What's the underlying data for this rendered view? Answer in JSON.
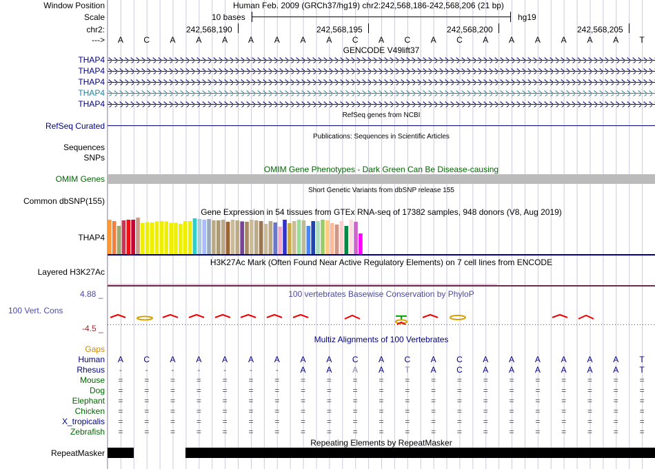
{
  "colors": {
    "navy": "#000080",
    "green": "#006600",
    "teal": "#1f7f99",
    "gaps_orange": "#cc8800",
    "phylo_blue": "#4a4aa3",
    "phylo_neg": "#9a2a2a",
    "omim_gray": "#bbbbbb",
    "h3k27ac_line": "#6a2a4a",
    "guide_line": "#d0c8dc"
  },
  "header": {
    "window_position_label": "Window Position",
    "window_position_value": "Human Feb. 2009 (GRCh37/hg19)   chr2:242,568,186-242,568,206 (21 bp)",
    "scale_label": "Scale",
    "scale_value": "10 bases",
    "scale_assembly": "hg19",
    "chrom_label": "chr2:",
    "coords": [
      "242,568,190",
      "242,568,195",
      "242,568,200",
      "242,568,205"
    ],
    "strand_label": "--->"
  },
  "sequence": [
    "A",
    "C",
    "A",
    "A",
    "A",
    "A",
    "A",
    "A",
    "A",
    "C",
    "A",
    "C",
    "A",
    "C",
    "A",
    "A",
    "A",
    "A",
    "A",
    "A",
    "T"
  ],
  "tracks": {
    "gencode": {
      "title": "GENCODE V49lift37",
      "transcripts": [
        "THAP4",
        "THAP4",
        "THAP4",
        "THAP4",
        "THAP4"
      ]
    },
    "refseq": {
      "title": "RefSeq genes from NCBI",
      "label": "RefSeq Curated"
    },
    "publications": {
      "title": "Publications: Sequences in Scientific Articles",
      "label_sequences": "Sequences",
      "label_snps": "SNPs"
    },
    "omim": {
      "title": "OMIM Gene Phenotypes - Dark Green Can Be Disease-causing",
      "label": "OMIM Genes"
    },
    "dbsnp": {
      "title": "Short Genetic Variants from dbSNP release 155",
      "label": "Common dbSNP(155)"
    },
    "gtex": {
      "title": "Gene Expression in 54 tissues from GTEx RNA-seq of 17382 samples, 948 donors (V8, Aug 2019)",
      "label": "THAP4",
      "values": [
        100,
        96,
        82,
        98,
        100,
        100,
        106,
        91,
        93,
        92,
        95,
        96,
        95,
        91,
        91,
        88,
        96,
        96,
        104,
        102,
        100,
        102,
        98,
        98,
        100,
        94,
        100,
        98,
        95,
        94,
        100,
        98,
        96,
        88,
        96,
        92,
        80,
        100,
        90,
        96,
        100,
        98,
        82,
        96,
        96,
        100,
        98,
        90,
        86,
        96,
        82,
        100,
        94,
        60
      ],
      "colors": [
        "#ff9933",
        "#f08040",
        "#99aa77",
        "#cc3355",
        "#ee1111",
        "#cc0033",
        "#cc9988",
        "#eeee00",
        "#eeee00",
        "#eeee00",
        "#eeee00",
        "#eeee00",
        "#eeee00",
        "#eeee00",
        "#eeee00",
        "#eeee00",
        "#eeee00",
        "#eeee00",
        "#33cccc",
        "#aaccdd",
        "#aabbff",
        "#99aabb",
        "#bbaa88",
        "#aa9977",
        "#bbaa88",
        "#996633",
        "#ccbb99",
        "#bbaa88",
        "#774499",
        "#aa8866",
        "#ccbb99",
        "#bbaa88",
        "#997755",
        "#ccbb99",
        "#bbaa88",
        "#6677cc",
        "#eeaacc",
        "#3333cc",
        "#ccaa44",
        "#ccbb99",
        "#99dd99",
        "#bbbb99",
        "#4488ff",
        "#2244aa",
        "#aaddbb",
        "#99cc66",
        "#ffcc88",
        "#ffbb99",
        "#cc9988",
        "#ffcccc",
        "#008844",
        "#ffdddd",
        "#cc66cc",
        "#ff00ff"
      ]
    },
    "h3k27ac": {
      "title": "H3K27Ac Mark (Often Found Near Active Regulatory Elements) on 7 cell lines from ENCODE",
      "label": "Layered H3K27Ac"
    },
    "phylop": {
      "title": "100 vertebrates Basewise Conservation by PhyloP",
      "label": "100 Vert. Cons",
      "max_label": "4.88 _",
      "min_label": "-4.5 _"
    },
    "multiz": {
      "title": "Multiz Alignments of 100 Vertebrates",
      "gaps_label": "Gaps",
      "species": [
        {
          "name": "Human",
          "row": [
            "A",
            "C",
            "A",
            "A",
            "A",
            "A",
            "A",
            "A",
            "A",
            "C",
            "A",
            "C",
            "A",
            "C",
            "A",
            "A",
            "A",
            "A",
            "A",
            "A",
            "T"
          ]
        },
        {
          "name": "Rhesus",
          "row": [
            "-",
            "-",
            "-",
            "-",
            "-",
            "-",
            "-",
            "A",
            "A",
            "A",
            "A",
            "T",
            "A",
            "C",
            "A",
            "A",
            "A",
            "A",
            "A",
            "A",
            "T"
          ]
        },
        {
          "name": "Mouse",
          "row": [
            "=",
            "=",
            "=",
            "=",
            "=",
            "=",
            "=",
            "=",
            "=",
            "=",
            "=",
            "=",
            "=",
            "=",
            "=",
            "=",
            "=",
            "=",
            "=",
            "=",
            "="
          ]
        },
        {
          "name": "Dog",
          "row": [
            "=",
            "=",
            "=",
            "=",
            "=",
            "=",
            "=",
            "=",
            "=",
            "=",
            "=",
            "=",
            "=",
            "=",
            "=",
            "=",
            "=",
            "=",
            "=",
            "=",
            "="
          ]
        },
        {
          "name": "Elephant",
          "row": [
            "=",
            "=",
            "=",
            "=",
            "=",
            "=",
            "=",
            "=",
            "=",
            "=",
            "=",
            "=",
            "=",
            "=",
            "=",
            "=",
            "=",
            "=",
            "=",
            "=",
            "="
          ]
        },
        {
          "name": "Chicken",
          "row": [
            "=",
            "=",
            "=",
            "=",
            "=",
            "=",
            "=",
            "=",
            "=",
            "=",
            "=",
            "=",
            "=",
            "=",
            "=",
            "=",
            "=",
            "=",
            "=",
            "=",
            "="
          ]
        },
        {
          "name": "X_tropicalis",
          "row": [
            "=",
            "=",
            "=",
            "=",
            "=",
            "=",
            "=",
            "=",
            "=",
            "=",
            "=",
            "=",
            "=",
            "=",
            "=",
            "=",
            "=",
            "=",
            "=",
            "=",
            "="
          ]
        },
        {
          "name": "Zebrafish",
          "row": [
            "=",
            "=",
            "=",
            "=",
            "=",
            "=",
            "=",
            "=",
            "=",
            "=",
            "=",
            "=",
            "=",
            "=",
            "=",
            "=",
            "=",
            "=",
            "=",
            "=",
            "="
          ]
        }
      ]
    },
    "repeatmasker": {
      "title": "Repeating Elements by RepeatMasker",
      "label": "RepeatMasker"
    }
  }
}
